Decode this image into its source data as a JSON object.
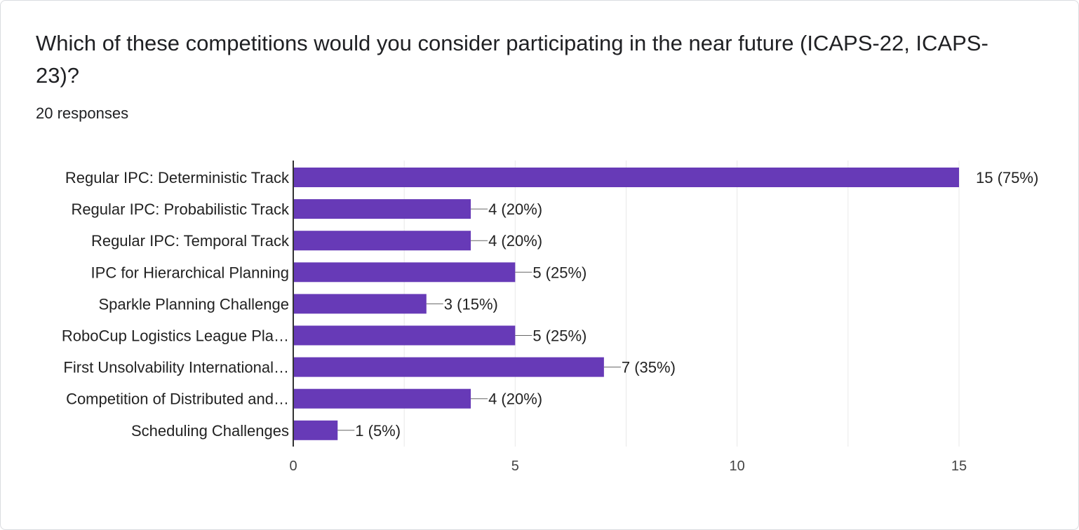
{
  "question": {
    "title": "Which of these competitions would you consider participating in the near future (ICAPS-22, ICAPS-23)?",
    "responses": "20 responses"
  },
  "colors": {
    "bar": "#673ab7",
    "grid": "#e8e8e8",
    "axis": "#333333",
    "leader": "#666666"
  },
  "chart_data": {
    "type": "bar",
    "orientation": "horizontal",
    "categories": [
      "Regular IPC: Deterministic Track",
      "Regular IPC: Probabilistic Track",
      "Regular IPC: Temporal Track",
      "IPC for Hierarchical Planning",
      "Sparkle Planning Challenge",
      "RoboCup Logistics League Pla…",
      "First Unsolvability International…",
      "Competition of Distributed and…",
      "Scheduling Challenges"
    ],
    "values": [
      15,
      4,
      4,
      5,
      3,
      5,
      7,
      4,
      1
    ],
    "data_labels": [
      "15 (75%)",
      "4 (20%)",
      "4 (20%)",
      "5 (25%)",
      "3 (15%)",
      "5 (25%)",
      "7 (35%)",
      "4 (20%)",
      "1 (5%)"
    ],
    "xlim": [
      0,
      15
    ],
    "xticks": [
      "0",
      "5",
      "10",
      "15"
    ],
    "grid": true,
    "legend": "none"
  }
}
